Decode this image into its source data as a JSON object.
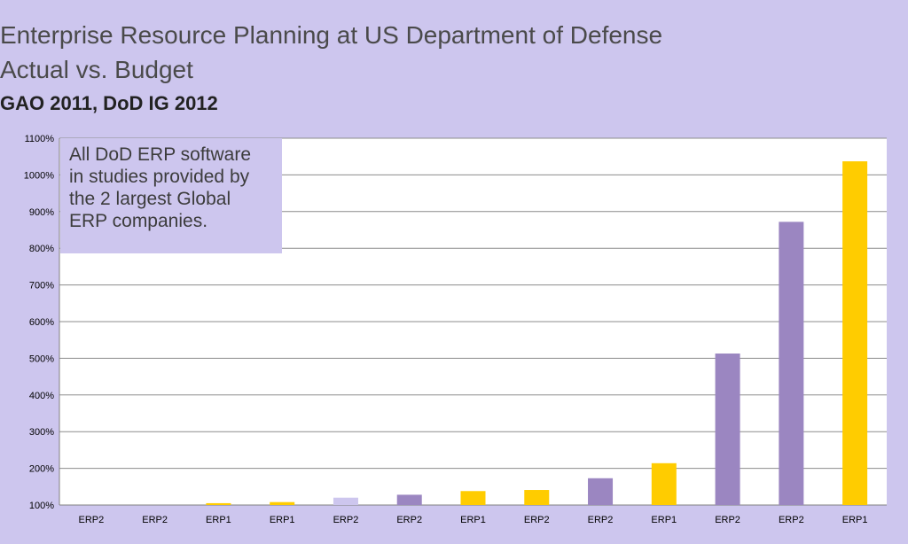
{
  "title_line1": "Enterprise Resource Planning at US Department of Defense",
  "title_line2": "Actual vs. Budget",
  "subtitle": "GAO 2011, DoD IG 2012",
  "callout_lines": [
    "All DoD ERP software",
    "in studies provided by",
    "the 2 largest Global",
    "ERP companies."
  ],
  "colors": {
    "background": "#cdc6ee",
    "erp1": "#ffcc00",
    "erp2": "#9b86c1",
    "erp2_light": "#cdc6ee"
  },
  "chart_data": {
    "type": "bar",
    "title": "Enterprise Resource Planning at US Department of Defense Actual vs. Budget",
    "subtitle": "GAO 2011, DoD IG 2012",
    "categories": [
      "ERP2",
      "ERP2",
      "ERP1",
      "ERP1",
      "ERP2",
      "ERP2",
      "ERP1",
      "ERP2",
      "ERP2",
      "ERP1",
      "ERP2",
      "ERP2",
      "ERP1"
    ],
    "values": [
      100,
      100,
      105,
      108,
      120,
      128,
      138,
      141,
      173,
      214,
      513,
      872,
      1037
    ],
    "bar_colors": [
      "#9b86c1",
      "#9b86c1",
      "#ffcc00",
      "#ffcc00",
      "#cdc6ee",
      "#9b86c1",
      "#ffcc00",
      "#ffcc00",
      "#9b86c1",
      "#ffcc00",
      "#9b86c1",
      "#9b86c1",
      "#ffcc00"
    ],
    "ylim": [
      100,
      1100
    ],
    "yticks": [
      "100%",
      "200%",
      "300%",
      "400%",
      "500%",
      "600%",
      "700%",
      "800%",
      "900%",
      "1000%",
      "1100%"
    ],
    "grid": true,
    "legend": "none"
  }
}
